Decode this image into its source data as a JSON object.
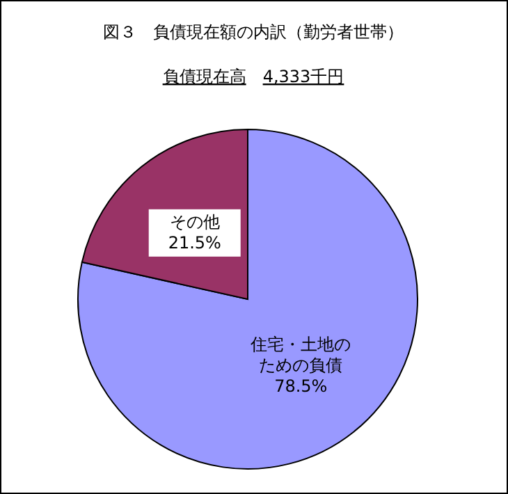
{
  "chart_data": {
    "type": "pie",
    "title": "図３　負債現在額の内訳（勤労者世帯）",
    "subtitle": "負債現在高　4,333千円",
    "categories": [
      "住宅・土地のための負債",
      "その他"
    ],
    "values": [
      78.5,
      21.5
    ],
    "colors": [
      "#9999ff",
      "#993366"
    ],
    "value_labels": [
      "78.5%",
      "21.5%"
    ]
  }
}
